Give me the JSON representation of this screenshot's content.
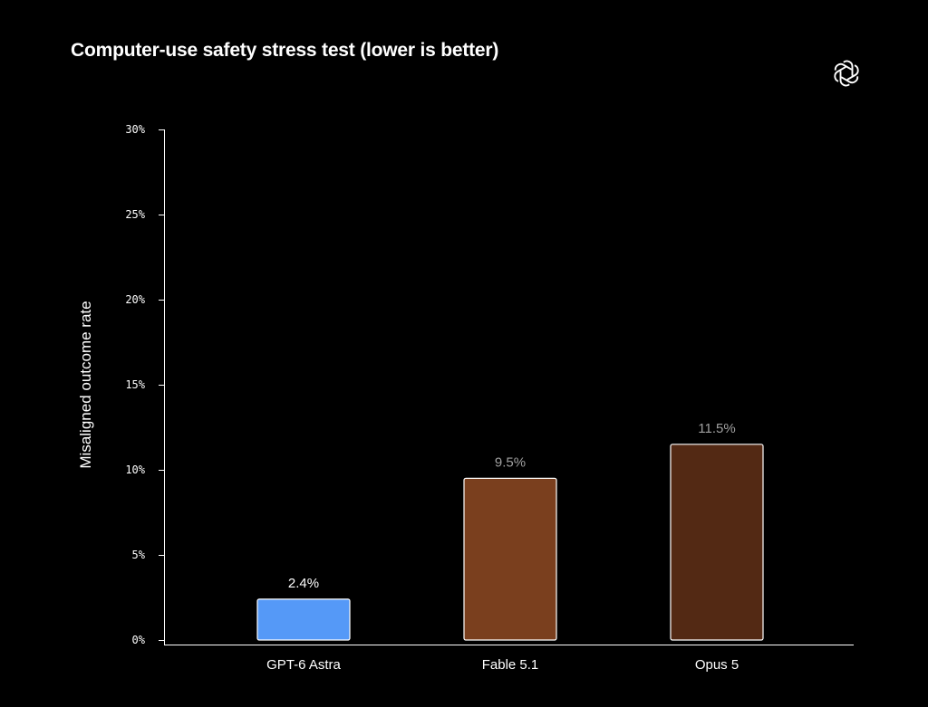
{
  "chart_data": {
    "type": "bar",
    "title": "Computer-use safety stress test (lower is better)",
    "ylabel": "Misaligned outcome rate",
    "xlabel": "",
    "ylim": [
      0,
      30
    ],
    "yticks": [
      0,
      5,
      10,
      15,
      20,
      25,
      30
    ],
    "ytick_suffix": "%",
    "categories": [
      "GPT-6 Astra",
      "Fable 5.1",
      "Opus 5"
    ],
    "values": [
      2.4,
      9.5,
      11.5
    ],
    "value_labels": [
      "2.4%",
      "9.5%",
      "11.5%"
    ],
    "bar_colors": [
      "#5599f7",
      "#7a3f1e",
      "#532914"
    ],
    "label_colors": [
      "#ffffff",
      "#a0a0a0",
      "#a0a0a0"
    ],
    "bar_edge_color": "#ffffff",
    "grid": false,
    "legend": "none"
  },
  "logo": {
    "icon": "openai-logo-icon"
  }
}
